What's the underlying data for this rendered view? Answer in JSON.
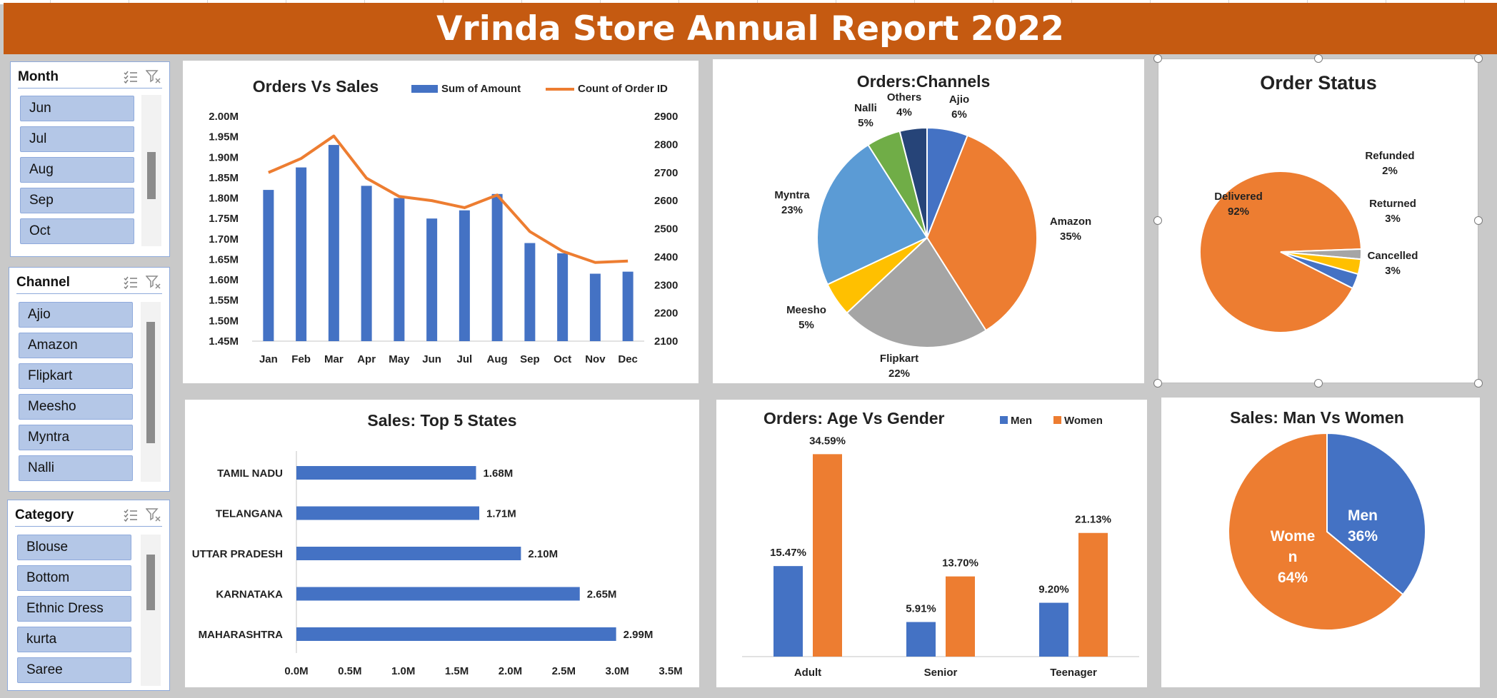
{
  "report_title": "Vrinda Store Annual Report 2022",
  "slicers": {
    "month": {
      "title": "Month",
      "items": [
        "Jun",
        "Jul",
        "Aug",
        "Sep",
        "Oct"
      ]
    },
    "channel": {
      "title": "Channel",
      "items": [
        "Ajio",
        "Amazon",
        "Flipkart",
        "Meesho",
        "Myntra",
        "Nalli"
      ]
    },
    "category": {
      "title": "Category",
      "items": [
        "Blouse",
        "Bottom",
        "Ethnic Dress",
        "kurta",
        "Saree"
      ]
    }
  },
  "colors": {
    "blue": "#4472c4",
    "orange": "#ed7d31",
    "gray": "#a5a5a5",
    "yellow": "#ffc000",
    "light_blue": "#5b9bd5",
    "green": "#70ad47",
    "navy": "#264478",
    "title_bar": "#c55a11"
  },
  "chart_data": [
    {
      "id": "orders_vs_sales",
      "type": "bar+line",
      "title": "Orders Vs Sales",
      "categories": [
        "Jan",
        "Feb",
        "Mar",
        "Apr",
        "May",
        "Jun",
        "Jul",
        "Aug",
        "Sep",
        "Oct",
        "Nov",
        "Dec"
      ],
      "series": [
        {
          "name": "Sum of Amount",
          "type": "bar",
          "axis": "left",
          "values": [
            1.82,
            1.875,
            1.93,
            1.83,
            1.8,
            1.75,
            1.77,
            1.81,
            1.69,
            1.665,
            1.615,
            1.62
          ]
        },
        {
          "name": "Count of Order ID",
          "type": "line",
          "axis": "right",
          "values": [
            2700,
            2750,
            2830,
            2680,
            2615,
            2600,
            2575,
            2620,
            2490,
            2420,
            2380,
            2385
          ]
        }
      ],
      "left_ticks": [
        "1.45M",
        "1.50M",
        "1.55M",
        "1.60M",
        "1.65M",
        "1.70M",
        "1.75M",
        "1.80M",
        "1.85M",
        "1.90M",
        "1.95M",
        "2.00M"
      ],
      "right_ticks": [
        "2100",
        "2200",
        "2300",
        "2400",
        "2500",
        "2600",
        "2700",
        "2800",
        "2900"
      ],
      "ylim_left": [
        1.45,
        2.0
      ],
      "ylim_right": [
        2100,
        2900
      ],
      "legend": "top"
    },
    {
      "id": "orders_channels",
      "type": "pie",
      "title": "Orders:Channels",
      "slices": [
        {
          "label": "Ajio",
          "value": 6,
          "text": "6%",
          "color": "#4472c4"
        },
        {
          "label": "Amazon",
          "value": 35,
          "text": "35%",
          "color": "#ed7d31"
        },
        {
          "label": "Flipkart",
          "value": 22,
          "text": "22%",
          "color": "#a5a5a5"
        },
        {
          "label": "Meesho",
          "value": 5,
          "text": "5%",
          "color": "#ffc000"
        },
        {
          "label": "Myntra",
          "value": 23,
          "text": "23%",
          "color": "#5b9bd5"
        },
        {
          "label": "Nalli",
          "value": 5,
          "text": "5%",
          "color": "#70ad47"
        },
        {
          "label": "Others",
          "value": 4,
          "text": "4%",
          "color": "#264478"
        }
      ]
    },
    {
      "id": "order_status",
      "type": "pie",
      "title": "Order Status",
      "slices": [
        {
          "label": "Delivered",
          "value": 92,
          "text": "92%",
          "color": "#ed7d31"
        },
        {
          "label": "Refunded",
          "value": 2,
          "text": "2%",
          "color": "#a5a5a5"
        },
        {
          "label": "Returned",
          "value": 3,
          "text": "3%",
          "color": "#ffc000"
        },
        {
          "label": "Cancelled",
          "value": 3,
          "text": "3%",
          "color": "#4472c4"
        }
      ]
    },
    {
      "id": "top_states",
      "type": "bar",
      "orientation": "horizontal",
      "title": "Sales: Top 5 States",
      "categories": [
        "TAMIL NADU",
        "TELANGANA",
        "UTTAR PRADESH",
        "KARNATAKA",
        "MAHARASHTRA"
      ],
      "values": [
        1.68,
        1.71,
        2.1,
        2.65,
        2.99
      ],
      "value_labels": [
        "1.68M",
        "1.71M",
        "2.10M",
        "2.65M",
        "2.99M"
      ],
      "x_ticks": [
        "0.0M",
        "0.5M",
        "1.0M",
        "1.5M",
        "2.0M",
        "2.5M",
        "3.0M",
        "3.5M"
      ],
      "xlim": [
        0,
        3.5
      ]
    },
    {
      "id": "age_gender",
      "type": "bar",
      "title": "Orders: Age Vs Gender",
      "categories": [
        "Adult",
        "Senior",
        "Teenager"
      ],
      "series": [
        {
          "name": "Men",
          "values": [
            15.47,
            5.91,
            9.2
          ],
          "labels": [
            "15.47%",
            "5.91%",
            "9.20%"
          ]
        },
        {
          "name": "Women",
          "values": [
            34.59,
            13.7,
            21.13
          ],
          "labels": [
            "34.59%",
            "13.70%",
            "21.13%"
          ]
        }
      ],
      "ylim": [
        0,
        40
      ],
      "legend": "top-right"
    },
    {
      "id": "men_vs_women",
      "type": "pie",
      "title": "Sales: Man Vs Women",
      "slices": [
        {
          "label": "Men",
          "value": 36,
          "text": "36%",
          "color": "#4472c4"
        },
        {
          "label": "Women",
          "value": 64,
          "text": "64%",
          "color": "#ed7d31"
        }
      ],
      "label_lines": {
        "men": [
          "Men",
          "36%"
        ],
        "women": [
          "Wome",
          "n",
          "64%"
        ]
      }
    }
  ]
}
